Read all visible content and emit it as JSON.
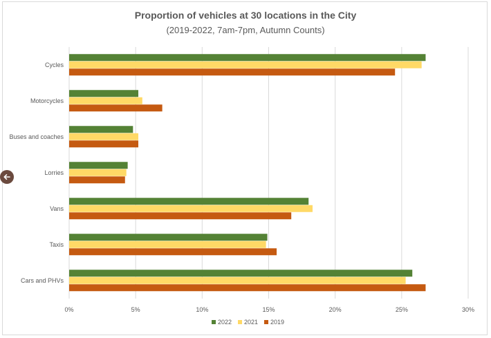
{
  "chart_data": {
    "type": "bar",
    "orientation": "horizontal",
    "title": "Proportion of vehicles at 30 locations in the City",
    "subtitle": "(2019-2022, 7am-7pm, Autumn Counts)",
    "categories": [
      "Cycles",
      "Motorcycles",
      "Buses and coaches",
      "Lorries",
      "Vans",
      "Taxis",
      "Cars and PHVs"
    ],
    "series": [
      {
        "name": "2022",
        "color": "#548235",
        "values": [
          26.8,
          5.2,
          4.8,
          4.4,
          18.0,
          14.9,
          25.8
        ]
      },
      {
        "name": "2021",
        "color": "#ffd966",
        "values": [
          26.5,
          5.5,
          5.2,
          4.3,
          18.3,
          14.8,
          25.3
        ]
      },
      {
        "name": "2019",
        "color": "#c55a11",
        "values": [
          24.5,
          7.0,
          5.2,
          4.2,
          16.7,
          15.6,
          26.8
        ]
      }
    ],
    "xlim": [
      0,
      30
    ],
    "ticks": [
      "0%",
      "5%",
      "10%",
      "15%",
      "20%",
      "25%",
      "30%"
    ],
    "xlabel": "",
    "ylabel": "",
    "grid": true,
    "legend_position": "bottom",
    "legend": [
      "2022",
      "2021",
      "2019"
    ]
  },
  "nav": {
    "back_icon": "arrow-left-icon"
  }
}
